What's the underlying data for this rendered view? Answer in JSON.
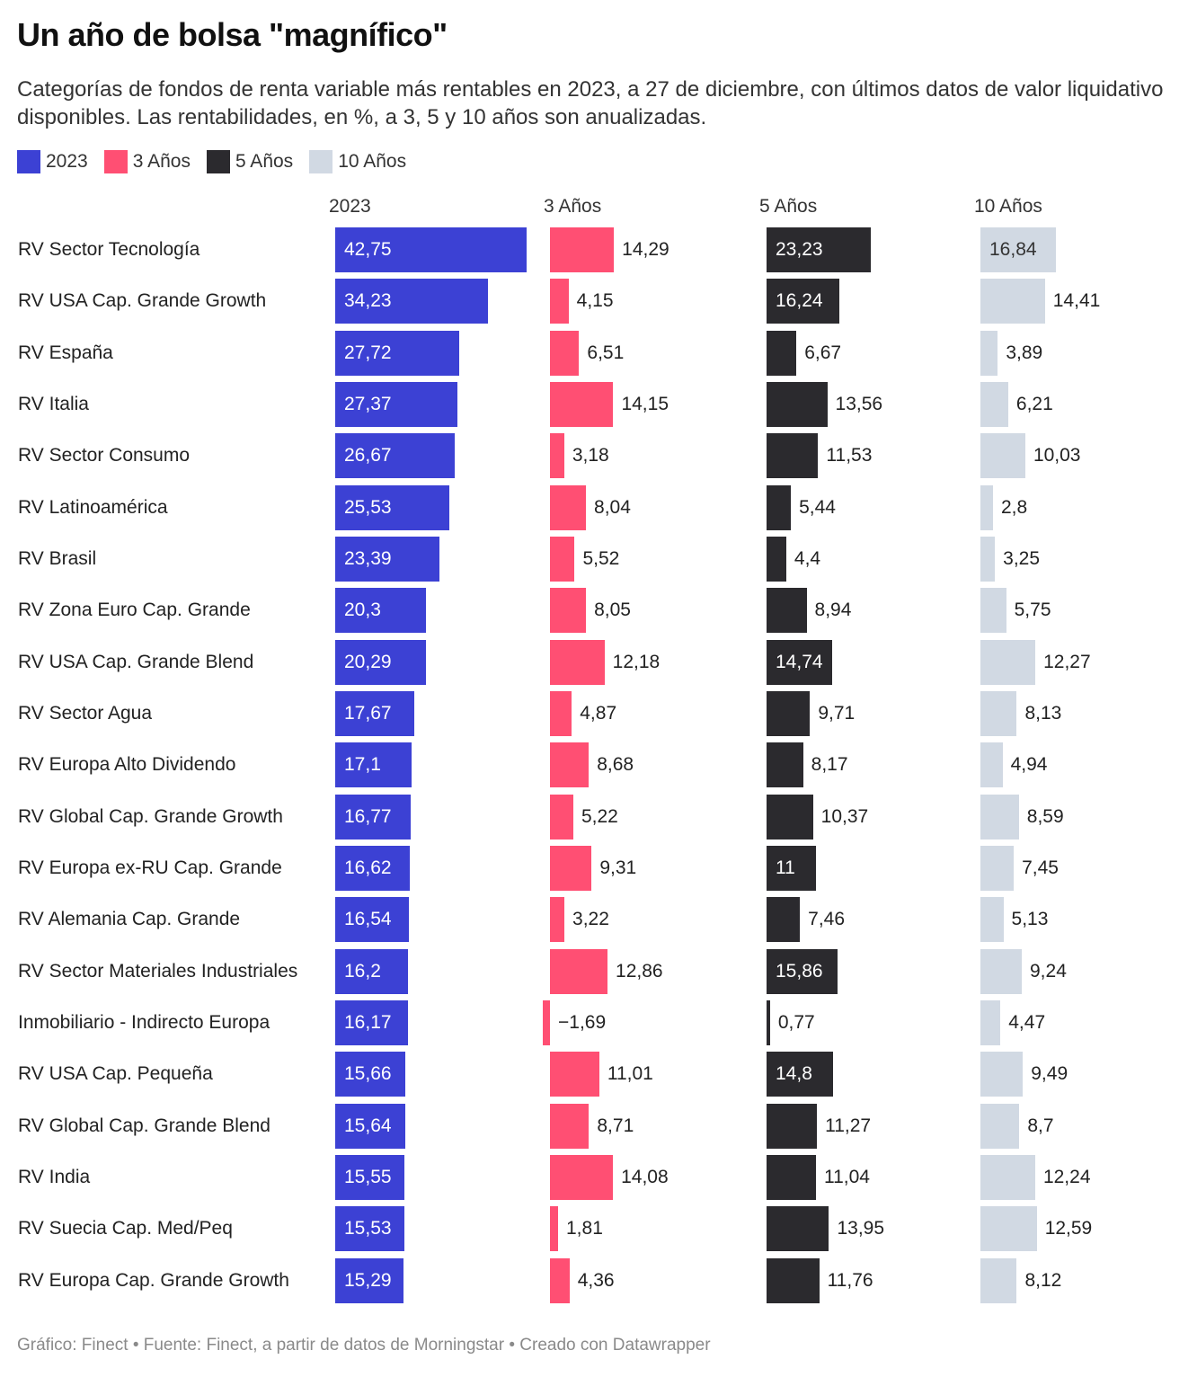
{
  "header": {
    "title": "Un año de bolsa \"magnífico\"",
    "subtitle": "Categorías de fondos de renta variable más rentables en 2023, a 27 de diciembre, con últimos datos de valor liquidativo disponibles. Las rentabilidades, en %, a 3, 5 y 10 años son anualizadas."
  },
  "legend": [
    {
      "label": "2023",
      "color": "#3c41d4"
    },
    {
      "label": "3 Años",
      "color": "#ff4f73"
    },
    {
      "label": "5 Años",
      "color": "#2b2a2e"
    },
    {
      "label": "10 Años",
      "color": "#d1d9e3"
    }
  ],
  "footer": {
    "text": "Gráfico: Finect • Fuente: Finect, a partir de datos de Morningstar • Creado con Datawrapper"
  },
  "chart_data": {
    "type": "bar",
    "orientation": "horizontal",
    "layout": "split-columns",
    "title": "Un año de bolsa \"magnífico\"",
    "xlabel": "",
    "ylabel": "",
    "unit": "%",
    "decimal_separator": ",",
    "grid": false,
    "legend_position": "top-left",
    "categories": [
      "RV Sector Tecnología",
      "RV USA Cap. Grande Growth",
      "RV España",
      "RV Italia",
      "RV Sector Consumo",
      "RV Latinoamérica",
      "RV Brasil",
      "RV Zona Euro Cap. Grande",
      "RV USA Cap. Grande Blend",
      "RV Sector Agua",
      "RV Europa Alto Dividendo",
      "RV Global Cap. Grande Growth",
      "RV Europa ex-RU Cap. Grande",
      "RV Alemania Cap. Grande",
      "RV Sector Materiales Industriales",
      "Inmobiliario - Indirecto Europa",
      "RV USA Cap. Pequeña",
      "RV Global Cap. Grande Blend",
      "RV India",
      "RV Suecia Cap. Med/Peq",
      "RV Europa Cap. Grande Growth"
    ],
    "series": [
      {
        "name": "2023",
        "color": "#3c41d4",
        "label_color_inside": "#ffffff",
        "values": [
          42.75,
          34.23,
          27.72,
          27.37,
          26.67,
          25.53,
          23.39,
          20.3,
          20.29,
          17.67,
          17.1,
          16.77,
          16.62,
          16.54,
          16.2,
          16.17,
          15.66,
          15.64,
          15.55,
          15.53,
          15.29
        ],
        "labels": [
          "42,75",
          "34,23",
          "27,72",
          "27,37",
          "26,67",
          "25,53",
          "23,39",
          "20,3",
          "20,29",
          "17,67",
          "17,1",
          "16,77",
          "16,62",
          "16,54",
          "16,2",
          "16,17",
          "15,66",
          "15,64",
          "15,55",
          "15,53",
          "15,29"
        ]
      },
      {
        "name": "3 Años",
        "color": "#ff4f73",
        "label_color_inside": "#ffffff",
        "values": [
          14.29,
          4.15,
          6.51,
          14.15,
          3.18,
          8.04,
          5.52,
          8.05,
          12.18,
          4.87,
          8.68,
          5.22,
          9.31,
          3.22,
          12.86,
          -1.69,
          11.01,
          8.71,
          14.08,
          1.81,
          4.36
        ],
        "labels": [
          "14,29",
          "4,15",
          "6,51",
          "14,15",
          "3,18",
          "8,04",
          "5,52",
          "8,05",
          "12,18",
          "4,87",
          "8,68",
          "5,22",
          "9,31",
          "3,22",
          "12,86",
          "−1,69",
          "11,01",
          "8,71",
          "14,08",
          "1,81",
          "4,36"
        ]
      },
      {
        "name": "5 Años",
        "color": "#2b2a2e",
        "label_color_inside": "#ffffff",
        "values": [
          23.23,
          16.24,
          6.67,
          13.56,
          11.53,
          5.44,
          4.4,
          8.94,
          14.74,
          9.71,
          8.17,
          10.37,
          11,
          7.46,
          15.86,
          0.77,
          14.8,
          11.27,
          11.04,
          13.95,
          11.76
        ],
        "labels": [
          "23,23",
          "16,24",
          "6,67",
          "13,56",
          "11,53",
          "5,44",
          "4,4",
          "8,94",
          "14,74",
          "9,71",
          "8,17",
          "10,37",
          "11",
          "7,46",
          "15,86",
          "0,77",
          "14,8",
          "11,27",
          "11,04",
          "13,95",
          "11,76"
        ]
      },
      {
        "name": "10 Años",
        "color": "#d1d9e3",
        "label_color_inside": "#333333",
        "values": [
          16.84,
          14.41,
          3.89,
          6.21,
          10.03,
          2.8,
          3.25,
          5.75,
          12.27,
          8.13,
          4.94,
          8.59,
          7.45,
          5.13,
          9.24,
          4.47,
          9.49,
          8.7,
          12.24,
          12.59,
          8.12
        ],
        "labels": [
          "16,84",
          "14,41",
          "3,89",
          "6,21",
          "10,03",
          "2,8",
          "3,25",
          "5,75",
          "12,27",
          "8,13",
          "4,94",
          "8,59",
          "7,45",
          "5,13",
          "9,24",
          "4,47",
          "9,49",
          "8,7",
          "12,24",
          "12,59",
          "8,12"
        ]
      }
    ],
    "label_inside": {
      "2023": [
        true,
        true,
        true,
        true,
        true,
        true,
        true,
        true,
        true,
        true,
        true,
        true,
        true,
        true,
        true,
        true,
        true,
        true,
        true,
        true,
        true
      ],
      "3 Años": [
        false,
        false,
        false,
        false,
        false,
        false,
        false,
        false,
        false,
        false,
        false,
        false,
        false,
        false,
        false,
        false,
        false,
        false,
        false,
        false,
        false
      ],
      "5 Años": [
        true,
        true,
        false,
        false,
        false,
        false,
        false,
        false,
        true,
        false,
        false,
        false,
        true,
        false,
        true,
        false,
        true,
        false,
        false,
        false,
        false
      ],
      "10 Años": [
        true,
        false,
        false,
        false,
        false,
        false,
        false,
        false,
        false,
        false,
        false,
        false,
        false,
        false,
        false,
        false,
        false,
        false,
        false,
        false,
        false
      ]
    }
  }
}
